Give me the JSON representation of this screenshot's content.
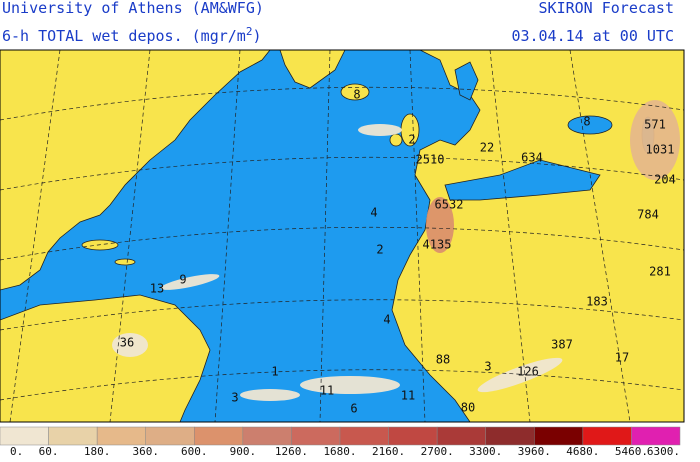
{
  "header": {
    "institution": "University of Athens (AM&WFG)",
    "field": "6-h TOTAL wet depos. (mgr/m",
    "field_power": "2",
    "field_end": ")",
    "product": "SKIRON Forecast",
    "valid_time": "03.04.14 at 00 UTC"
  },
  "map": {
    "labels": [
      "571",
      "1031",
      "204",
      "784",
      "281",
      "183",
      "17",
      "387",
      "126",
      "80",
      "88",
      "3",
      "11",
      "6",
      "11",
      "1",
      "3",
      "36",
      "13",
      "9",
      "2",
      "4",
      "4135",
      "6532",
      "2510",
      "2",
      "8",
      "22",
      "634",
      "8",
      "4"
    ]
  },
  "legend": {
    "colors": [
      "#f0e6d2",
      "#e8d2a8",
      "#e6b98a",
      "#deae86",
      "#dc926c",
      "#cc7f6e",
      "#cc6a5e",
      "#c8584e",
      "#c04842",
      "#aa3a38",
      "#8e2c2c",
      "#7a0000",
      "#e01818",
      "#e020b0"
    ],
    "labels": [
      "0.",
      "60.",
      "180.",
      "360.",
      "600.",
      "900.",
      "1260.",
      "1680.",
      "2160.",
      "2700.",
      "3300.",
      "3960.",
      "4680.",
      "5460.",
      "6300."
    ]
  }
}
